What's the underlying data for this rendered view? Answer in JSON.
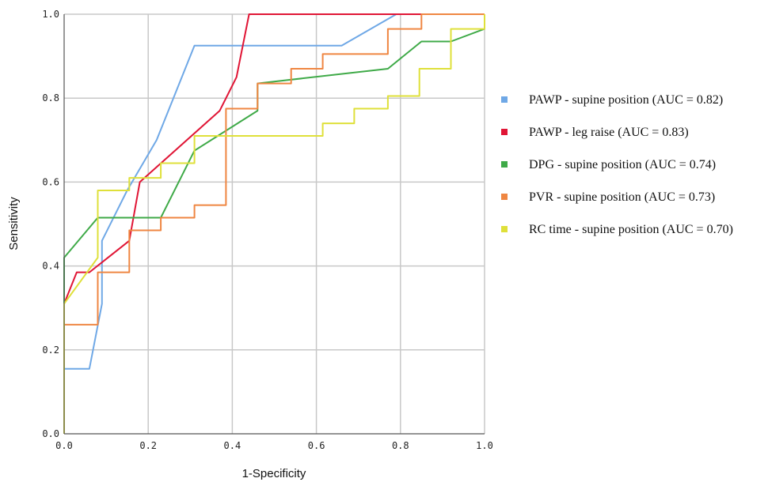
{
  "chart_data": {
    "type": "line",
    "title": "",
    "xlabel": "1-Specificity",
    "ylabel": "Sensitivity",
    "xlim": [
      0,
      1
    ],
    "ylim": [
      0,
      1
    ],
    "xticks": [
      "0.0",
      "0.2",
      "0.4",
      "0.6",
      "0.8",
      "1.0"
    ],
    "yticks": [
      "0.0",
      "0.2",
      "0.4",
      "0.6",
      "0.8",
      "1.0"
    ],
    "grid": true,
    "legend_position": "right",
    "series": [
      {
        "name": "PAWP - supine position (AUC = 0.82)",
        "color": "#6fa8e6",
        "points": [
          [
            0,
            0
          ],
          [
            0,
            0.155
          ],
          [
            0.06,
            0.155
          ],
          [
            0.09,
            0.31
          ],
          [
            0.09,
            0.46
          ],
          [
            0.15,
            0.58
          ],
          [
            0.22,
            0.7
          ],
          [
            0.31,
            0.925
          ],
          [
            0.66,
            0.925
          ],
          [
            0.79,
            1.0
          ],
          [
            1.0,
            1.0
          ]
        ]
      },
      {
        "name": "PAWP - leg raise (AUC = 0.83)",
        "color": "#e01535",
        "points": [
          [
            0,
            0
          ],
          [
            0,
            0.31
          ],
          [
            0.03,
            0.385
          ],
          [
            0.06,
            0.385
          ],
          [
            0.155,
            0.46
          ],
          [
            0.18,
            0.6
          ],
          [
            0.37,
            0.77
          ],
          [
            0.41,
            0.85
          ],
          [
            0.44,
            1.0
          ],
          [
            1.0,
            1.0
          ]
        ]
      },
      {
        "name": "DPG - supine position (AUC = 0.74)",
        "color": "#3faa48",
        "points": [
          [
            0,
            0.29
          ],
          [
            0,
            0.42
          ],
          [
            0.08,
            0.515
          ],
          [
            0.23,
            0.515
          ],
          [
            0.31,
            0.675
          ],
          [
            0.46,
            0.77
          ],
          [
            0.46,
            0.835
          ],
          [
            0.77,
            0.87
          ],
          [
            0.85,
            0.935
          ],
          [
            0.92,
            0.935
          ],
          [
            1.0,
            0.965
          ],
          [
            1.0,
            1.0
          ]
        ]
      },
      {
        "name": "PVR - supine position (AUC = 0.73)",
        "color": "#ef8642",
        "points": [
          [
            0,
            0
          ],
          [
            0,
            0.26
          ],
          [
            0.08,
            0.26
          ],
          [
            0.08,
            0.385
          ],
          [
            0.155,
            0.385
          ],
          [
            0.155,
            0.485
          ],
          [
            0.23,
            0.485
          ],
          [
            0.23,
            0.515
          ],
          [
            0.31,
            0.515
          ],
          [
            0.31,
            0.545
          ],
          [
            0.385,
            0.545
          ],
          [
            0.385,
            0.775
          ],
          [
            0.46,
            0.775
          ],
          [
            0.46,
            0.835
          ],
          [
            0.54,
            0.835
          ],
          [
            0.54,
            0.87
          ],
          [
            0.615,
            0.87
          ],
          [
            0.615,
            0.905
          ],
          [
            0.77,
            0.905
          ],
          [
            0.77,
            0.965
          ],
          [
            0.85,
            0.965
          ],
          [
            0.85,
            1.0
          ],
          [
            1.0,
            1.0
          ]
        ]
      },
      {
        "name": "RC time - supine position (AUC = 0.70)",
        "color": "#dfe03a",
        "points": [
          [
            0,
            0
          ],
          [
            0,
            0.31
          ],
          [
            0.08,
            0.42
          ],
          [
            0.08,
            0.58
          ],
          [
            0.155,
            0.58
          ],
          [
            0.155,
            0.61
          ],
          [
            0.23,
            0.61
          ],
          [
            0.23,
            0.645
          ],
          [
            0.31,
            0.645
          ],
          [
            0.31,
            0.71
          ],
          [
            0.615,
            0.71
          ],
          [
            0.615,
            0.74
          ],
          [
            0.69,
            0.74
          ],
          [
            0.69,
            0.775
          ],
          [
            0.77,
            0.775
          ],
          [
            0.77,
            0.805
          ],
          [
            0.845,
            0.805
          ],
          [
            0.845,
            0.87
          ],
          [
            0.92,
            0.87
          ],
          [
            0.92,
            0.965
          ],
          [
            1.0,
            0.965
          ],
          [
            1.0,
            1.0
          ]
        ]
      }
    ]
  }
}
